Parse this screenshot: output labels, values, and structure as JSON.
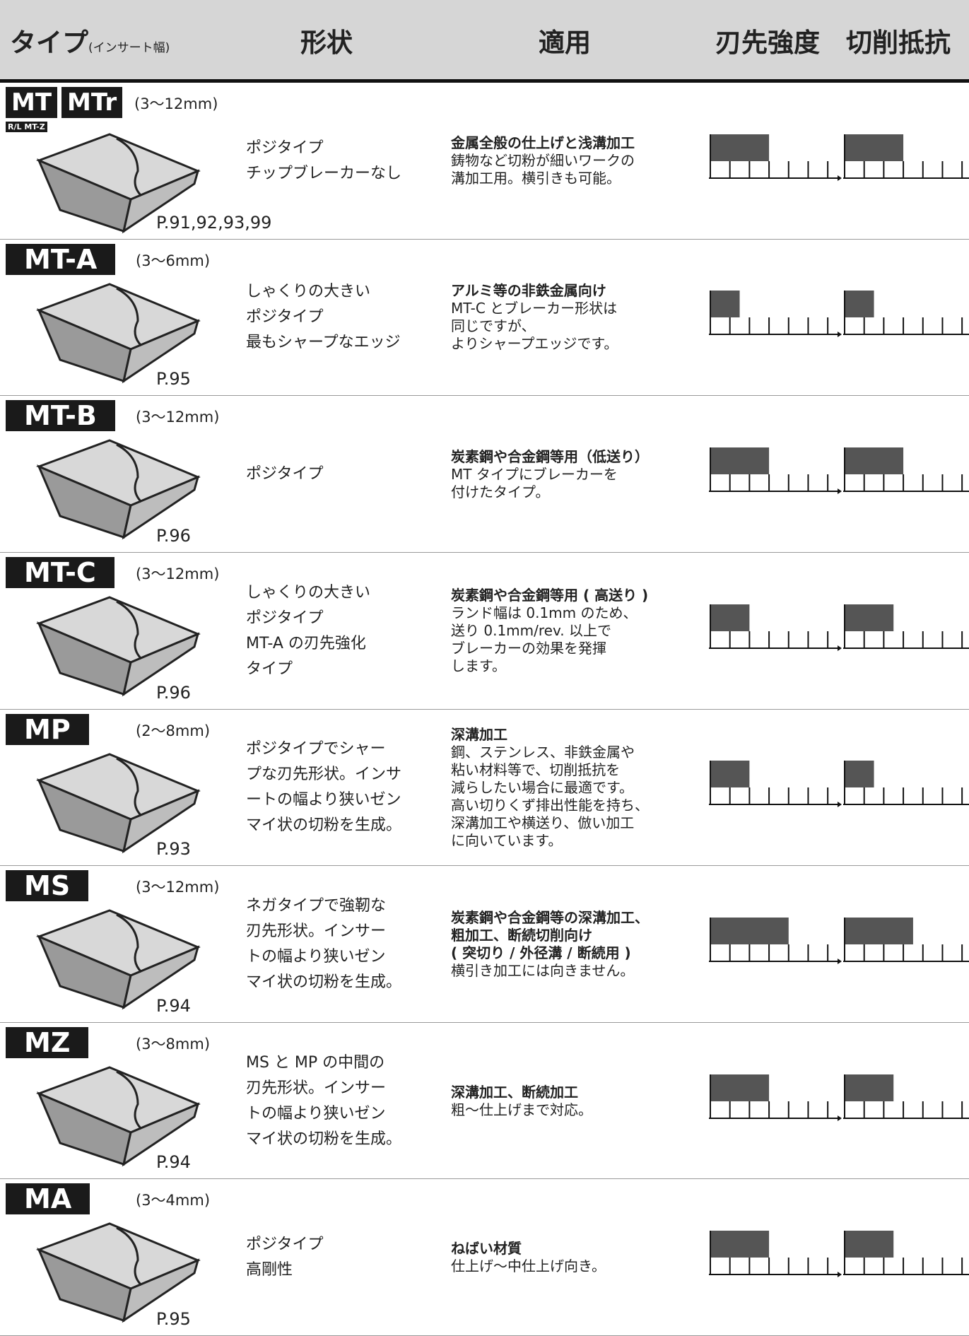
{
  "header": {
    "type": "タイプ",
    "type_note": "(インサート幅)",
    "shape": "形状",
    "application": "適用",
    "strength": "刃先強度",
    "resistance": "切削抵抗"
  },
  "gauge_scale": {
    "lim": [
      0,
      6.5
    ],
    "ticks": [
      0,
      1,
      2,
      3,
      4,
      5,
      6
    ]
  },
  "rows": [
    {
      "labels": [
        "MT",
        "MTr"
      ],
      "sublabel": "R/L MT-Z",
      "size": "(3〜12mm)",
      "page": "P.91,92,93,99",
      "shape": [
        "ポジタイプ",
        "チップブレーカーなし"
      ],
      "application_title": [
        "金属全般の仕上げと浅溝加工"
      ],
      "application": [
        "鋳物など切粉が細いワークの",
        "溝加工用。横引きも可能。"
      ],
      "strength": 3,
      "resistance": 3
    },
    {
      "labels": [
        "MT-A"
      ],
      "size": "(3〜6mm)",
      "page": "P.95",
      "shape": [
        "しゃくりの大きい",
        "ポジタイプ",
        "最もシャープなエッジ"
      ],
      "application_title": [
        "アルミ等の非鉄金属向け"
      ],
      "application": [
        "MT-C とブレーカー形状は",
        "同じですが、",
        "よりシャープエッジです。"
      ],
      "strength": 1.5,
      "resistance": 1.5
    },
    {
      "labels": [
        "MT-B"
      ],
      "size": "(3〜12mm)",
      "page": "P.96",
      "shape": [
        "ポジタイプ"
      ],
      "application_title": [
        "炭素鋼や合金鋼等用（低送り）"
      ],
      "application": [
        "MT タイプにブレーカーを",
        "付けたタイプ。"
      ],
      "strength": 3,
      "resistance": 3
    },
    {
      "labels": [
        "MT-C"
      ],
      "size": "(3〜12mm)",
      "page": "P.96",
      "shape": [
        "しゃくりの大きい",
        "ポジタイプ",
        "MT-A の刃先強化",
        "タイプ"
      ],
      "application_title": [
        "炭素鋼や合金鋼等用 ( 高送り )"
      ],
      "application": [
        "ランド幅は 0.1mm のため、",
        "送り 0.1mm/rev. 以上で",
        "ブレーカーの効果を発揮",
        "します。"
      ],
      "strength": 2,
      "resistance": 2.5
    },
    {
      "labels": [
        "MP"
      ],
      "size": "(2〜8mm)",
      "page": "P.93",
      "shape": [
        "ポジタイプでシャー",
        "プな刃先形状。インサ",
        "ートの幅より狭いゼン",
        "マイ状の切粉を生成。"
      ],
      "application_title": [
        "深溝加工"
      ],
      "application": [
        "鋼、ステンレス、非鉄金属や",
        "粘い材料等で、切削抵抗を",
        "減らしたい場合に最適です。",
        "高い切りくず排出性能を持ち、",
        "深溝加工や横送り、倣い加工",
        "に向いています。"
      ],
      "strength": 2,
      "resistance": 1.5
    },
    {
      "labels": [
        "MS"
      ],
      "size": "(3〜12mm)",
      "page": "P.94",
      "shape": [
        "ネガタイプで強靭な",
        "刃先形状。インサー",
        "トの幅より狭いゼン",
        "マイ状の切粉を生成。"
      ],
      "application_title": [
        "炭素鋼や合金鋼等の深溝加工、",
        "粗加工、断続切削向け",
        "( 突切り / 外径溝 / 断続用 )"
      ],
      "application": [
        "横引き加工には向きません。"
      ],
      "strength": 4,
      "resistance": 3.5
    },
    {
      "labels": [
        "MZ"
      ],
      "size": "(3〜8mm)",
      "page": "P.94",
      "shape": [
        "MS と MP の中間の",
        "刃先形状。インサー",
        "トの幅より狭いゼン",
        "マイ状の切粉を生成。"
      ],
      "application_title": [
        "深溝加工、断続加工"
      ],
      "application": [
        "粗〜仕上げまで対応。"
      ],
      "strength": 3,
      "resistance": 2.5
    },
    {
      "labels": [
        "MA"
      ],
      "size": "(3〜4mm)",
      "page": "P.95",
      "shape": [
        "ポジタイプ",
        "高剛性"
      ],
      "application_title": [
        "ねばい材質"
      ],
      "application": [
        "仕上げ〜中仕上げ向き。"
      ],
      "strength": 3,
      "resistance": 2.5
    }
  ]
}
